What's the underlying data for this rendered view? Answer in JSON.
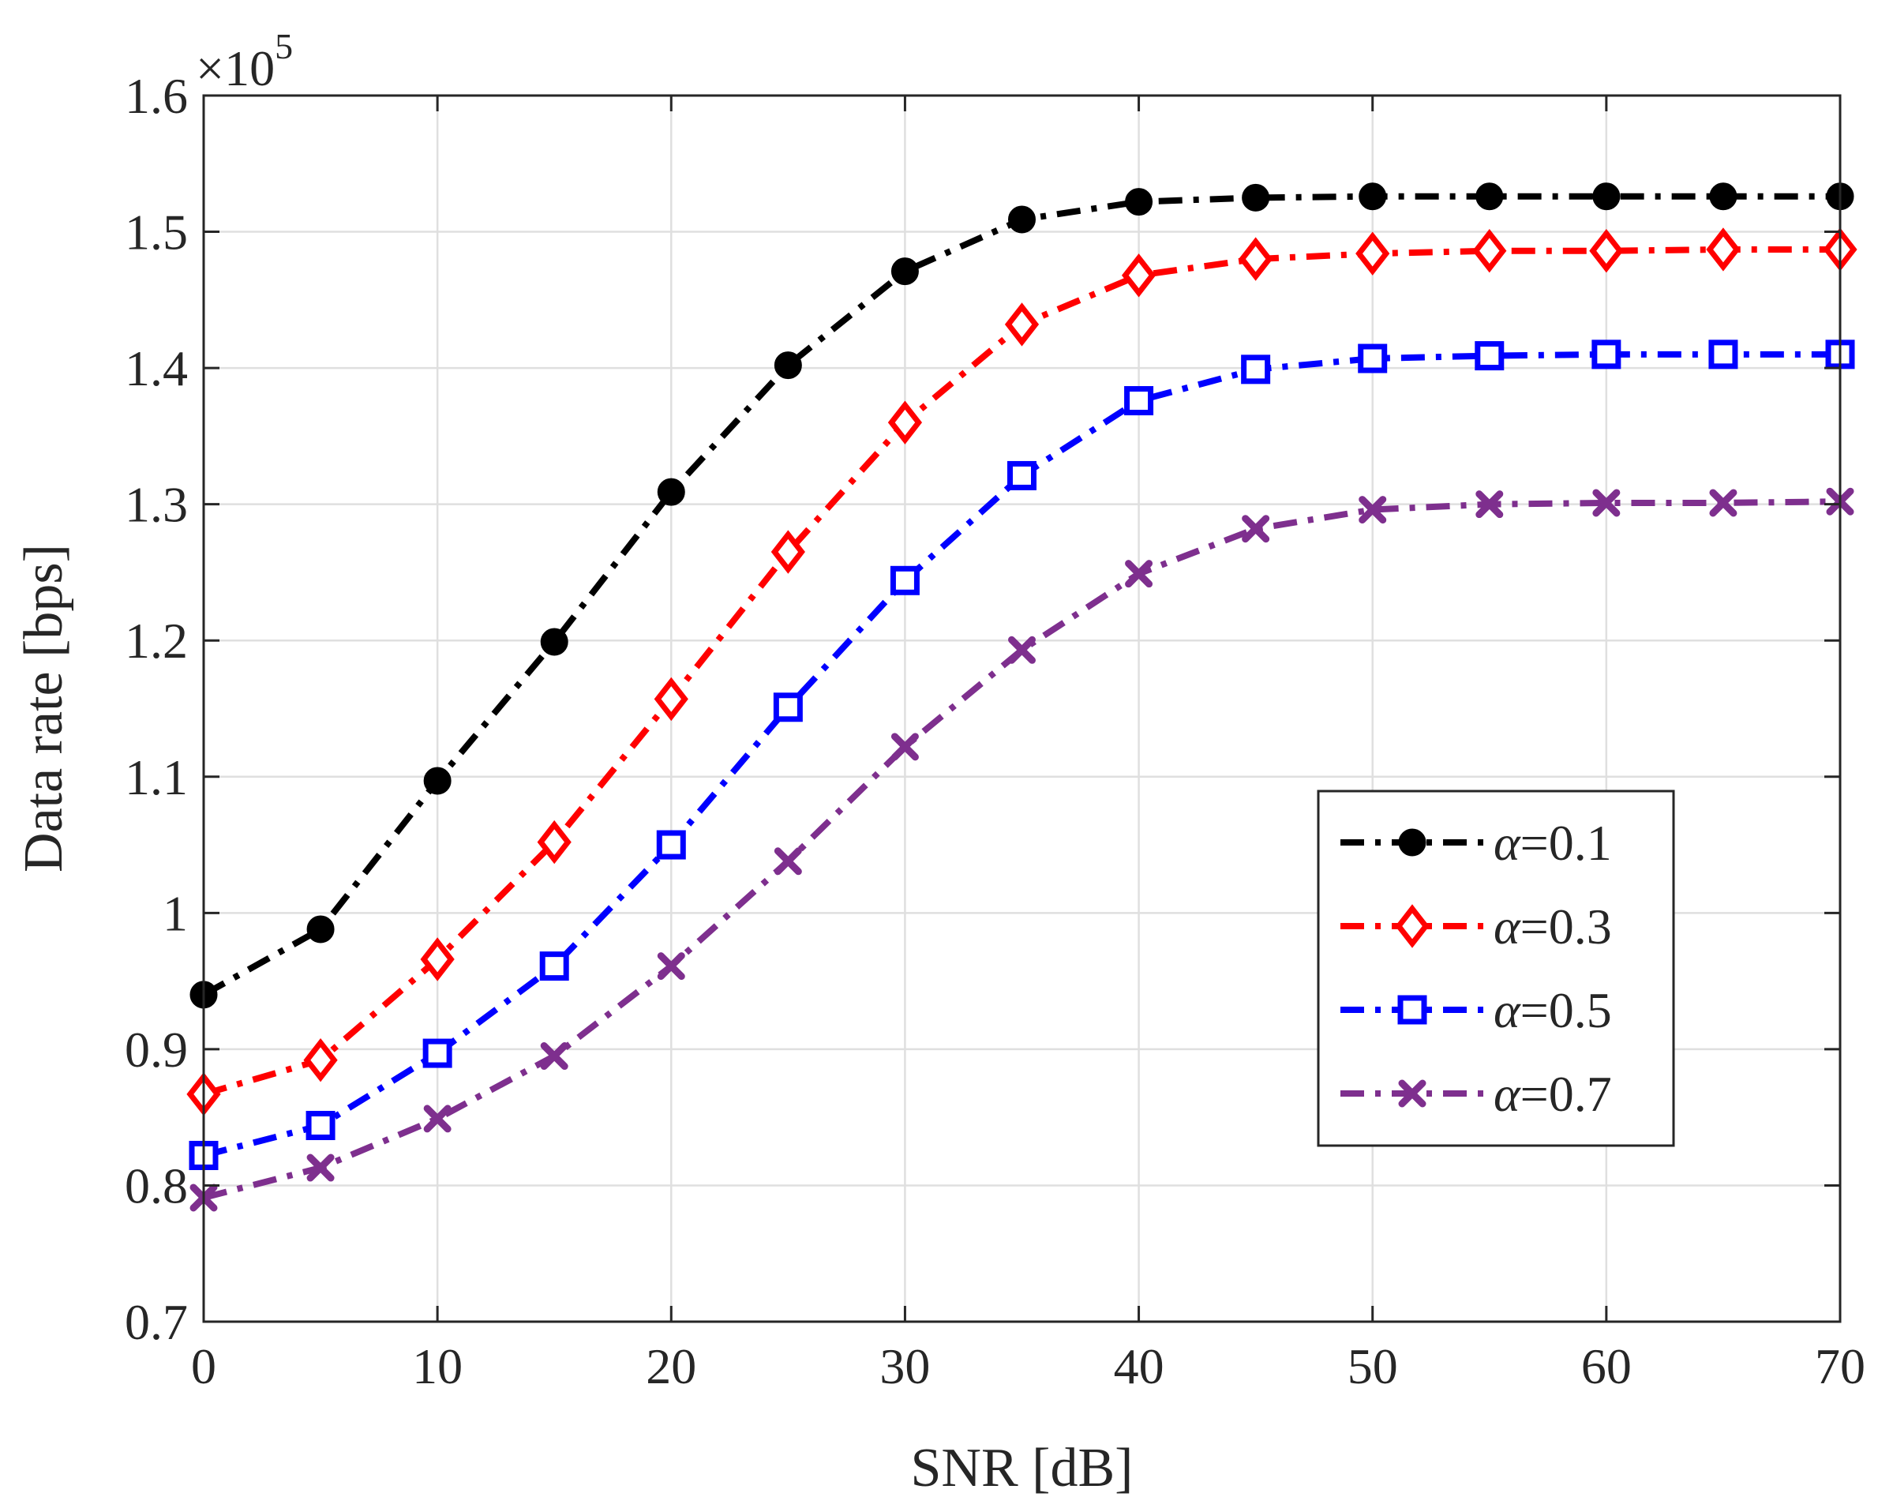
{
  "chart_data": {
    "type": "line",
    "title": "",
    "xlabel": "SNR [dB]",
    "ylabel": "Data rate [bps]",
    "y_multiplier_label": "×10",
    "y_multiplier_exponent": "5",
    "xlim": [
      0,
      70
    ],
    "ylim": [
      0.7,
      1.6
    ],
    "xticks": [
      0,
      10,
      20,
      30,
      40,
      50,
      60,
      70
    ],
    "xtick_labels": [
      "0",
      "10",
      "20",
      "30",
      "40",
      "50",
      "60",
      "70"
    ],
    "yticks": [
      0.7,
      0.8,
      0.9,
      1.0,
      1.1,
      1.2,
      1.3,
      1.4,
      1.5,
      1.6
    ],
    "ytick_labels": [
      "0.7",
      "0.8",
      "0.9",
      "1",
      "1.1",
      "1.2",
      "1.3",
      "1.4",
      "1.5",
      "1.6"
    ],
    "grid": true,
    "legend_position": "lower-right",
    "x": [
      0,
      5,
      10,
      15,
      20,
      25,
      30,
      35,
      40,
      45,
      50,
      55,
      60,
      65,
      70
    ],
    "series": [
      {
        "name": "α=0.1",
        "legend_symbol": "α",
        "legend_value": "=0.1",
        "color": "#000000",
        "marker": "circle",
        "values": [
          0.94,
          0.988,
          1.097,
          1.199,
          1.309,
          1.402,
          1.471,
          1.509,
          1.522,
          1.525,
          1.526,
          1.526,
          1.526,
          1.526,
          1.526
        ]
      },
      {
        "name": "α=0.3",
        "legend_symbol": "α",
        "legend_value": "=0.3",
        "color": "#ff0000",
        "marker": "diamond",
        "values": [
          0.867,
          0.892,
          0.966,
          1.052,
          1.157,
          1.265,
          1.36,
          1.432,
          1.468,
          1.48,
          1.484,
          1.486,
          1.486,
          1.487,
          1.487
        ]
      },
      {
        "name": "α=0.5",
        "legend_symbol": "α",
        "legend_value": "=0.5",
        "color": "#0000ff",
        "marker": "square",
        "values": [
          0.822,
          0.844,
          0.897,
          0.961,
          1.05,
          1.151,
          1.244,
          1.321,
          1.376,
          1.399,
          1.407,
          1.409,
          1.41,
          1.41,
          1.41
        ]
      },
      {
        "name": "α=0.7",
        "legend_symbol": "α",
        "legend_value": "=0.7",
        "color": "#7e2f8e",
        "marker": "x",
        "values": [
          0.791,
          0.813,
          0.849,
          0.895,
          0.961,
          1.038,
          1.122,
          1.193,
          1.249,
          1.282,
          1.296,
          1.3,
          1.301,
          1.301,
          1.302
        ]
      }
    ]
  }
}
